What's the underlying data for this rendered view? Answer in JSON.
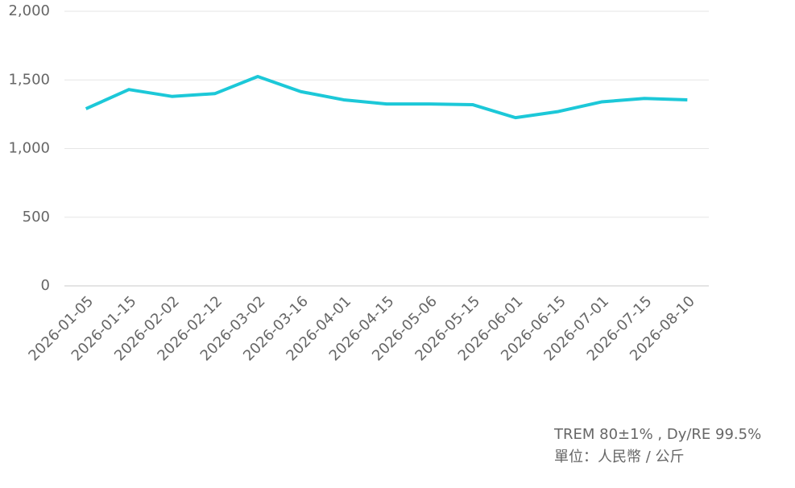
{
  "chart_data": {
    "type": "line",
    "categories": [
      "2026-01-05",
      "2026-01-15",
      "2026-02-02",
      "2026-02-12",
      "2026-03-02",
      "2026-03-16",
      "2026-04-01",
      "2026-04-15",
      "2026-05-06",
      "2026-05-15",
      "2026-06-01",
      "2026-06-15",
      "2026-07-01",
      "2026-07-15",
      "2026-08-10"
    ],
    "series": [
      {
        "color": "#1cc8d8",
        "values": [
          1290,
          1430,
          1380,
          1400,
          1525,
          1415,
          1355,
          1325,
          1325,
          1320,
          1225,
          1270,
          1340,
          1365,
          1355
        ]
      }
    ],
    "ylim": [
      0,
      2000
    ],
    "yticks": [
      0,
      500,
      {
        "value": 1000,
        "label": "1,000"
      },
      {
        "value": 1500,
        "label": "1,500"
      },
      {
        "value": 2000,
        "label": "2,000"
      }
    ],
    "grid": true,
    "notes": [
      "TREM 80±1% , Dy/RE 99.5%",
      "單位：人民幣 / 公斤"
    ]
  }
}
